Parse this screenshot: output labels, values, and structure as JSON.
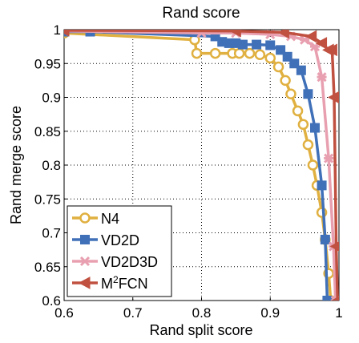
{
  "chart_data": {
    "type": "line",
    "title": "Rand score",
    "xlabel": "Rand split score",
    "ylabel": "Rand merge score",
    "xlim": [
      0.6,
      1.0
    ],
    "ylim": [
      0.6,
      1.0
    ],
    "xticks": [
      0.6,
      0.7,
      0.8,
      0.9,
      1
    ],
    "xtick_labels": [
      "0.6",
      "0.7",
      "0.8",
      "0.9",
      "1"
    ],
    "yticks": [
      0.6,
      0.65,
      0.7,
      0.75,
      0.8,
      0.85,
      0.9,
      0.95,
      1
    ],
    "ytick_labels": [
      "0.6",
      "0.65",
      "0.7",
      "0.75",
      "0.8",
      "0.85",
      "0.9",
      "0.95",
      "1"
    ],
    "grid": true,
    "legend_position": "bottom-left",
    "series": [
      {
        "name": "N4",
        "legend_label": "N4",
        "marker": "circle",
        "color": "#e0b040",
        "points": [
          [
            0.6,
            0.995
          ],
          [
            0.79,
            0.985
          ],
          [
            0.793,
            0.965
          ],
          [
            0.82,
            0.965
          ],
          [
            0.845,
            0.965
          ],
          [
            0.855,
            0.965
          ],
          [
            0.87,
            0.965
          ],
          [
            0.885,
            0.963
          ],
          [
            0.9,
            0.958
          ],
          [
            0.912,
            0.945
          ],
          [
            0.922,
            0.925
          ],
          [
            0.93,
            0.905
          ],
          [
            0.94,
            0.88
          ],
          [
            0.948,
            0.86
          ],
          [
            0.955,
            0.83
          ],
          [
            0.962,
            0.8
          ],
          [
            0.968,
            0.77
          ],
          [
            0.975,
            0.73
          ],
          [
            0.98,
            0.69
          ],
          [
            0.985,
            0.64
          ],
          [
            0.988,
            0.6
          ]
        ]
      },
      {
        "name": "VD2D",
        "legend_label": "VD2D",
        "marker": "square",
        "color": "#4070b8",
        "points": [
          [
            0.6,
            0.997
          ],
          [
            0.638,
            0.997
          ],
          [
            0.82,
            0.99
          ],
          [
            0.83,
            0.982
          ],
          [
            0.84,
            0.98
          ],
          [
            0.85,
            0.98
          ],
          [
            0.86,
            0.978
          ],
          [
            0.88,
            0.978
          ],
          [
            0.9,
            0.977
          ],
          [
            0.915,
            0.97
          ],
          [
            0.925,
            0.96
          ],
          [
            0.935,
            0.95
          ],
          [
            0.945,
            0.94
          ],
          [
            0.955,
            0.905
          ],
          [
            0.965,
            0.855
          ],
          [
            0.975,
            0.77
          ],
          [
            0.98,
            0.69
          ],
          [
            0.983,
            0.6
          ]
        ]
      },
      {
        "name": "VD2D3D",
        "legend_label": "VD2D3D",
        "marker": "asterisk",
        "color": "#e8a0b0",
        "points": [
          [
            0.6,
            0.998
          ],
          [
            0.8,
            0.995
          ],
          [
            0.85,
            0.995
          ],
          [
            0.9,
            0.993
          ],
          [
            0.93,
            0.99
          ],
          [
            0.95,
            0.985
          ],
          [
            0.965,
            0.975
          ],
          [
            0.975,
            0.93
          ],
          [
            0.985,
            0.81
          ],
          [
            0.992,
            0.68
          ],
          [
            0.995,
            0.6
          ]
        ]
      },
      {
        "name": "M2FCN",
        "legend_label": "M",
        "legend_label_sup": "2",
        "legend_label_rest": "FCN",
        "marker": "triangle-left",
        "color": "#c05040",
        "points": [
          [
            0.6,
            0.999
          ],
          [
            0.85,
            0.998
          ],
          [
            0.92,
            0.996
          ],
          [
            0.96,
            0.99
          ],
          [
            0.975,
            0.98
          ],
          [
            0.985,
            0.97
          ],
          [
            0.99,
            0.97
          ],
          [
            0.993,
            0.9
          ],
          [
            0.996,
            0.68
          ],
          [
            0.998,
            0.6
          ]
        ]
      }
    ]
  }
}
